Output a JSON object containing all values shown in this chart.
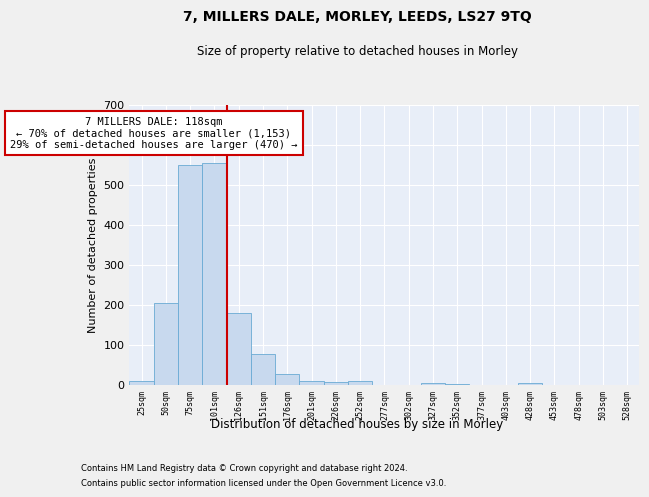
{
  "title": "7, MILLERS DALE, MORLEY, LEEDS, LS27 9TQ",
  "subtitle": "Size of property relative to detached houses in Morley",
  "xlabel": "Distribution of detached houses by size in Morley",
  "ylabel": "Number of detached properties",
  "bar_color": "#c8d9ee",
  "bar_edge_color": "#6aaad4",
  "background_color": "#e8eef8",
  "fig_background": "#f0f0f0",
  "categories": [
    "25sqm",
    "50sqm",
    "75sqm",
    "101sqm",
    "126sqm",
    "151sqm",
    "176sqm",
    "201sqm",
    "226sqm",
    "252sqm",
    "277sqm",
    "302sqm",
    "327sqm",
    "352sqm",
    "377sqm",
    "403sqm",
    "428sqm",
    "453sqm",
    "478sqm",
    "503sqm",
    "528sqm"
  ],
  "values": [
    10,
    205,
    548,
    555,
    178,
    77,
    27,
    10,
    6,
    10,
    0,
    0,
    5,
    2,
    0,
    0,
    4,
    0,
    0,
    0,
    0
  ],
  "ylim": [
    0,
    700
  ],
  "yticks": [
    0,
    100,
    200,
    300,
    400,
    500,
    600,
    700
  ],
  "vline_x": 3.5,
  "vline_label": "7 MILLERS DALE: 118sqm",
  "annotation_line1": "← 70% of detached houses are smaller (1,153)",
  "annotation_line2": "29% of semi-detached houses are larger (470) →",
  "footnote1": "Contains HM Land Registry data © Crown copyright and database right 2024.",
  "footnote2": "Contains public sector information licensed under the Open Government Licence v3.0.",
  "grid_color": "#ffffff",
  "vline_color": "#cc0000",
  "annotation_box_color": "#cc0000"
}
